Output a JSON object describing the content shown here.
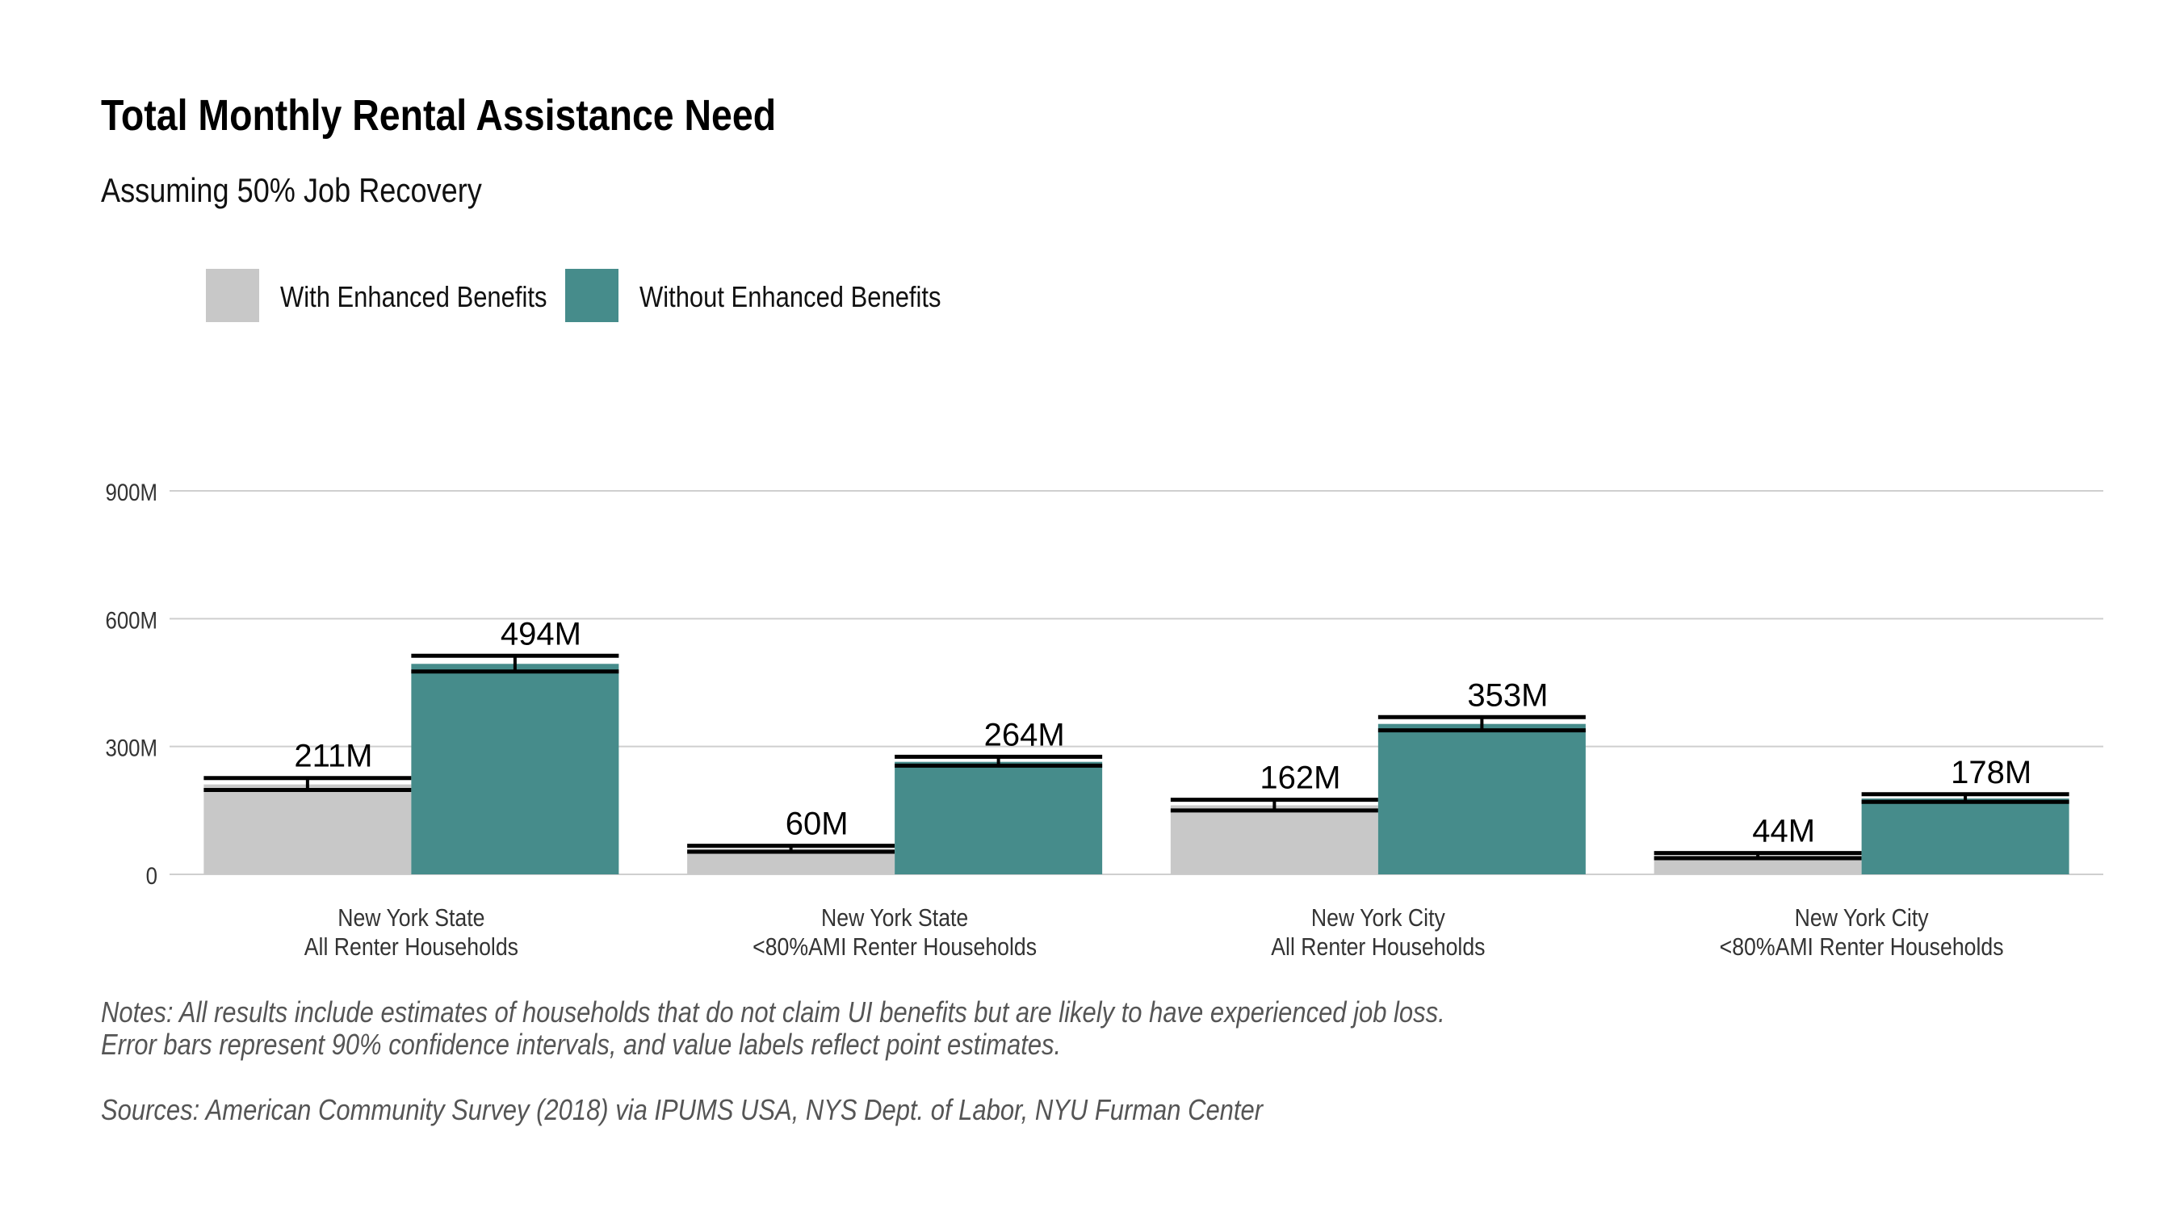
{
  "chart_data": {
    "type": "bar",
    "title": "Total Monthly Rental Assistance Need",
    "subtitle": "Assuming 50% Job Recovery",
    "categories": [
      [
        "New York State",
        "All Renter Households"
      ],
      [
        "New York State",
        "<80%AMI Renter Households"
      ],
      [
        "New York City",
        "All Renter Households"
      ],
      [
        "New York City",
        "<80%AMI Renter Households"
      ]
    ],
    "series": [
      {
        "name": "With Enhanced Benefits",
        "color": "#c8c8c8",
        "values": [
          211000000,
          60000000,
          162000000,
          44000000
        ],
        "labels": [
          "211M",
          "60M",
          "162M",
          "44M"
        ],
        "error_low": [
          198000000,
          53000000,
          150000000,
          38000000
        ],
        "error_high": [
          226000000,
          67000000,
          175000000,
          50000000
        ]
      },
      {
        "name": "Without Enhanced Benefits",
        "color": "#468c8b",
        "values": [
          494000000,
          264000000,
          353000000,
          178000000
        ],
        "labels": [
          "494M",
          "264M",
          "353M",
          "178M"
        ],
        "error_low": [
          476000000,
          255000000,
          338000000,
          170000000
        ],
        "error_high": [
          513000000,
          276000000,
          369000000,
          188000000
        ]
      }
    ],
    "ylim": [
      0,
      900000000
    ],
    "yticks": [
      0,
      300000000,
      600000000,
      900000000
    ],
    "ytick_labels": [
      "0",
      "300M",
      "600M",
      "900M"
    ],
    "xlabel": "",
    "ylabel": "",
    "grid": true,
    "legend_position": "top-left",
    "notes": [
      "Notes: All results include estimates of households that do not claim UI benefits but are likely to have experienced job loss.",
      "Error bars represent 90% confidence intervals, and value labels reflect point estimates."
    ],
    "sources": "Sources: American Community Survey (2018) via IPUMS USA, NYS Dept. of Labor, NYU Furman Center"
  }
}
